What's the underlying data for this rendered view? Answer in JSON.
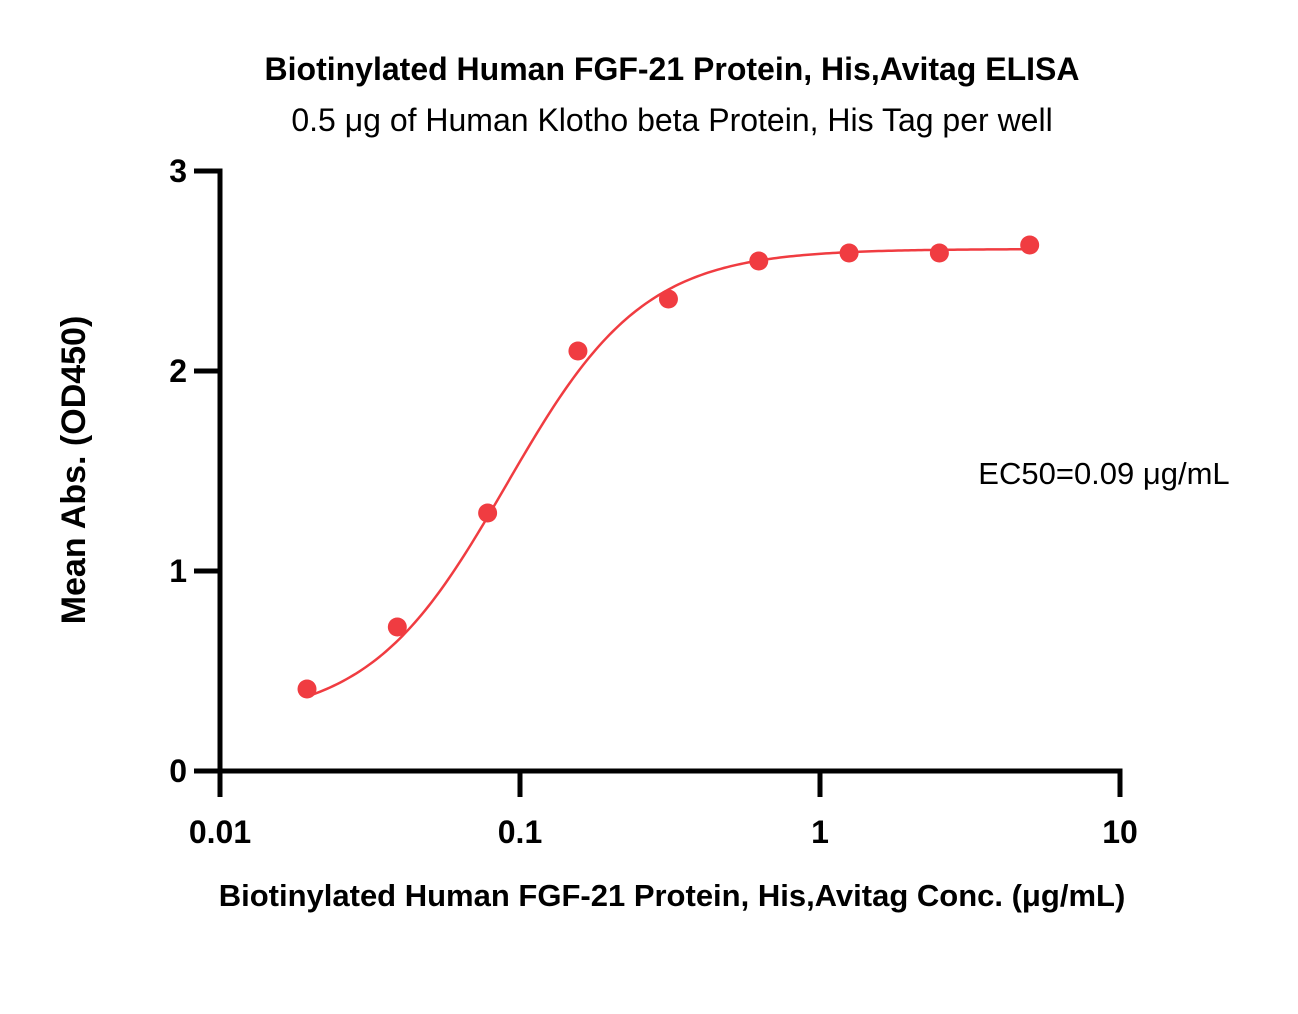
{
  "chart_data": {
    "type": "scatter",
    "title": "Biotinylated Human FGF-21 Protein, His,Avitag ELISA",
    "subtitle": "0.5 μg of Human Klotho beta Protein, His Tag per well",
    "xlabel": "Biotinylated Human FGF-21 Protein, His,Avitag Conc. (μg/mL)",
    "ylabel": "Mean Abs. (OD450)",
    "xscale": "log",
    "xlim": [
      0.01,
      10
    ],
    "ylim": [
      0,
      3
    ],
    "x_ticks": [
      {
        "value": 0.01,
        "label": "0.01"
      },
      {
        "value": 0.1,
        "label": "0.1"
      },
      {
        "value": 1,
        "label": "1"
      },
      {
        "value": 10,
        "label": "10"
      }
    ],
    "y_ticks": [
      {
        "value": 0,
        "label": "0"
      },
      {
        "value": 1,
        "label": "1"
      },
      {
        "value": 2,
        "label": "2"
      },
      {
        "value": 3,
        "label": "3"
      }
    ],
    "grid": false,
    "series": [
      {
        "color": "#f03c41",
        "x": [
          0.0195,
          0.039,
          0.078,
          0.156,
          0.3125,
          0.625,
          1.25,
          2.5,
          5
        ],
        "y": [
          0.41,
          0.72,
          1.29,
          2.1,
          2.36,
          2.55,
          2.59,
          2.59,
          2.63
        ]
      }
    ],
    "fit": {
      "type": "4PL",
      "bottom": 0.25,
      "top": 2.61,
      "ec50": 0.09,
      "hill": 1.9,
      "color": "#f03c41"
    },
    "annotations": [
      {
        "text": "EC50=0.09 μg/mL"
      }
    ]
  }
}
